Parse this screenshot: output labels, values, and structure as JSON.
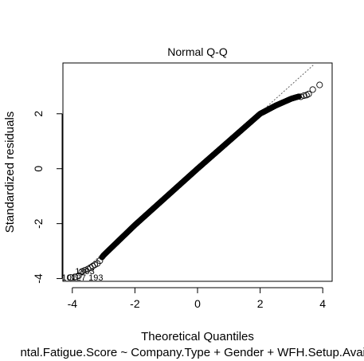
{
  "chart_data": {
    "type": "scatter",
    "title": "Normal Q-Q",
    "xlabel": "Theoretical Quantiles",
    "ylabel": "Standardized residuals",
    "subtitle": "ntal.Fatigue.Score ~ Company.Type + Gender + WFH.Setup.Availa",
    "xlim": [
      -4.3,
      4.3
    ],
    "ylim": [
      -4.1,
      3.85
    ],
    "x_ticks": [
      -4,
      -2,
      0,
      2,
      4
    ],
    "y_ticks": [
      -4,
      -2,
      0,
      2
    ],
    "x_tick_labels": [
      "-4",
      "-2",
      "0",
      "2",
      "4"
    ],
    "y_tick_labels": [
      "-4",
      "-2",
      "0",
      "2"
    ],
    "grid": false,
    "reference_line": {
      "intercept": 0,
      "slope": 1.02,
      "style": "dotted"
    },
    "point_annotations": [
      {
        "label": "1803",
        "x": -3.6,
        "y": -3.72
      },
      {
        "label": "10127",
        "x": -3.95,
        "y": -3.95
      },
      {
        "label": "193",
        "x": -3.25,
        "y": -3.95
      }
    ],
    "curve_anchors": {
      "x": [
        -4.05,
        -3.9,
        -3.5,
        -3.2,
        -3.0,
        -2.5,
        -2.0,
        0.0,
        2.0,
        2.5,
        3.0,
        3.3,
        3.6,
        3.9
      ],
      "y": [
        -3.95,
        -3.95,
        -3.62,
        -3.45,
        -3.15,
        -2.6,
        -2.05,
        0.0,
        2.0,
        2.3,
        2.55,
        2.65,
        2.75,
        3.05
      ]
    },
    "tail_points": {
      "x": [
        -4.05,
        -3.92,
        -3.8,
        -3.7,
        -3.6,
        -3.5,
        -3.42,
        -3.35,
        -3.28,
        -3.2,
        -3.12,
        3.3,
        3.4,
        3.48,
        3.55,
        3.68,
        3.9
      ],
      "y": [
        -3.96,
        -3.94,
        -3.9,
        -3.75,
        -3.7,
        -3.65,
        -3.6,
        -3.55,
        -3.5,
        -3.45,
        -3.35,
        2.62,
        2.66,
        2.68,
        2.72,
        2.88,
        3.05
      ]
    }
  }
}
